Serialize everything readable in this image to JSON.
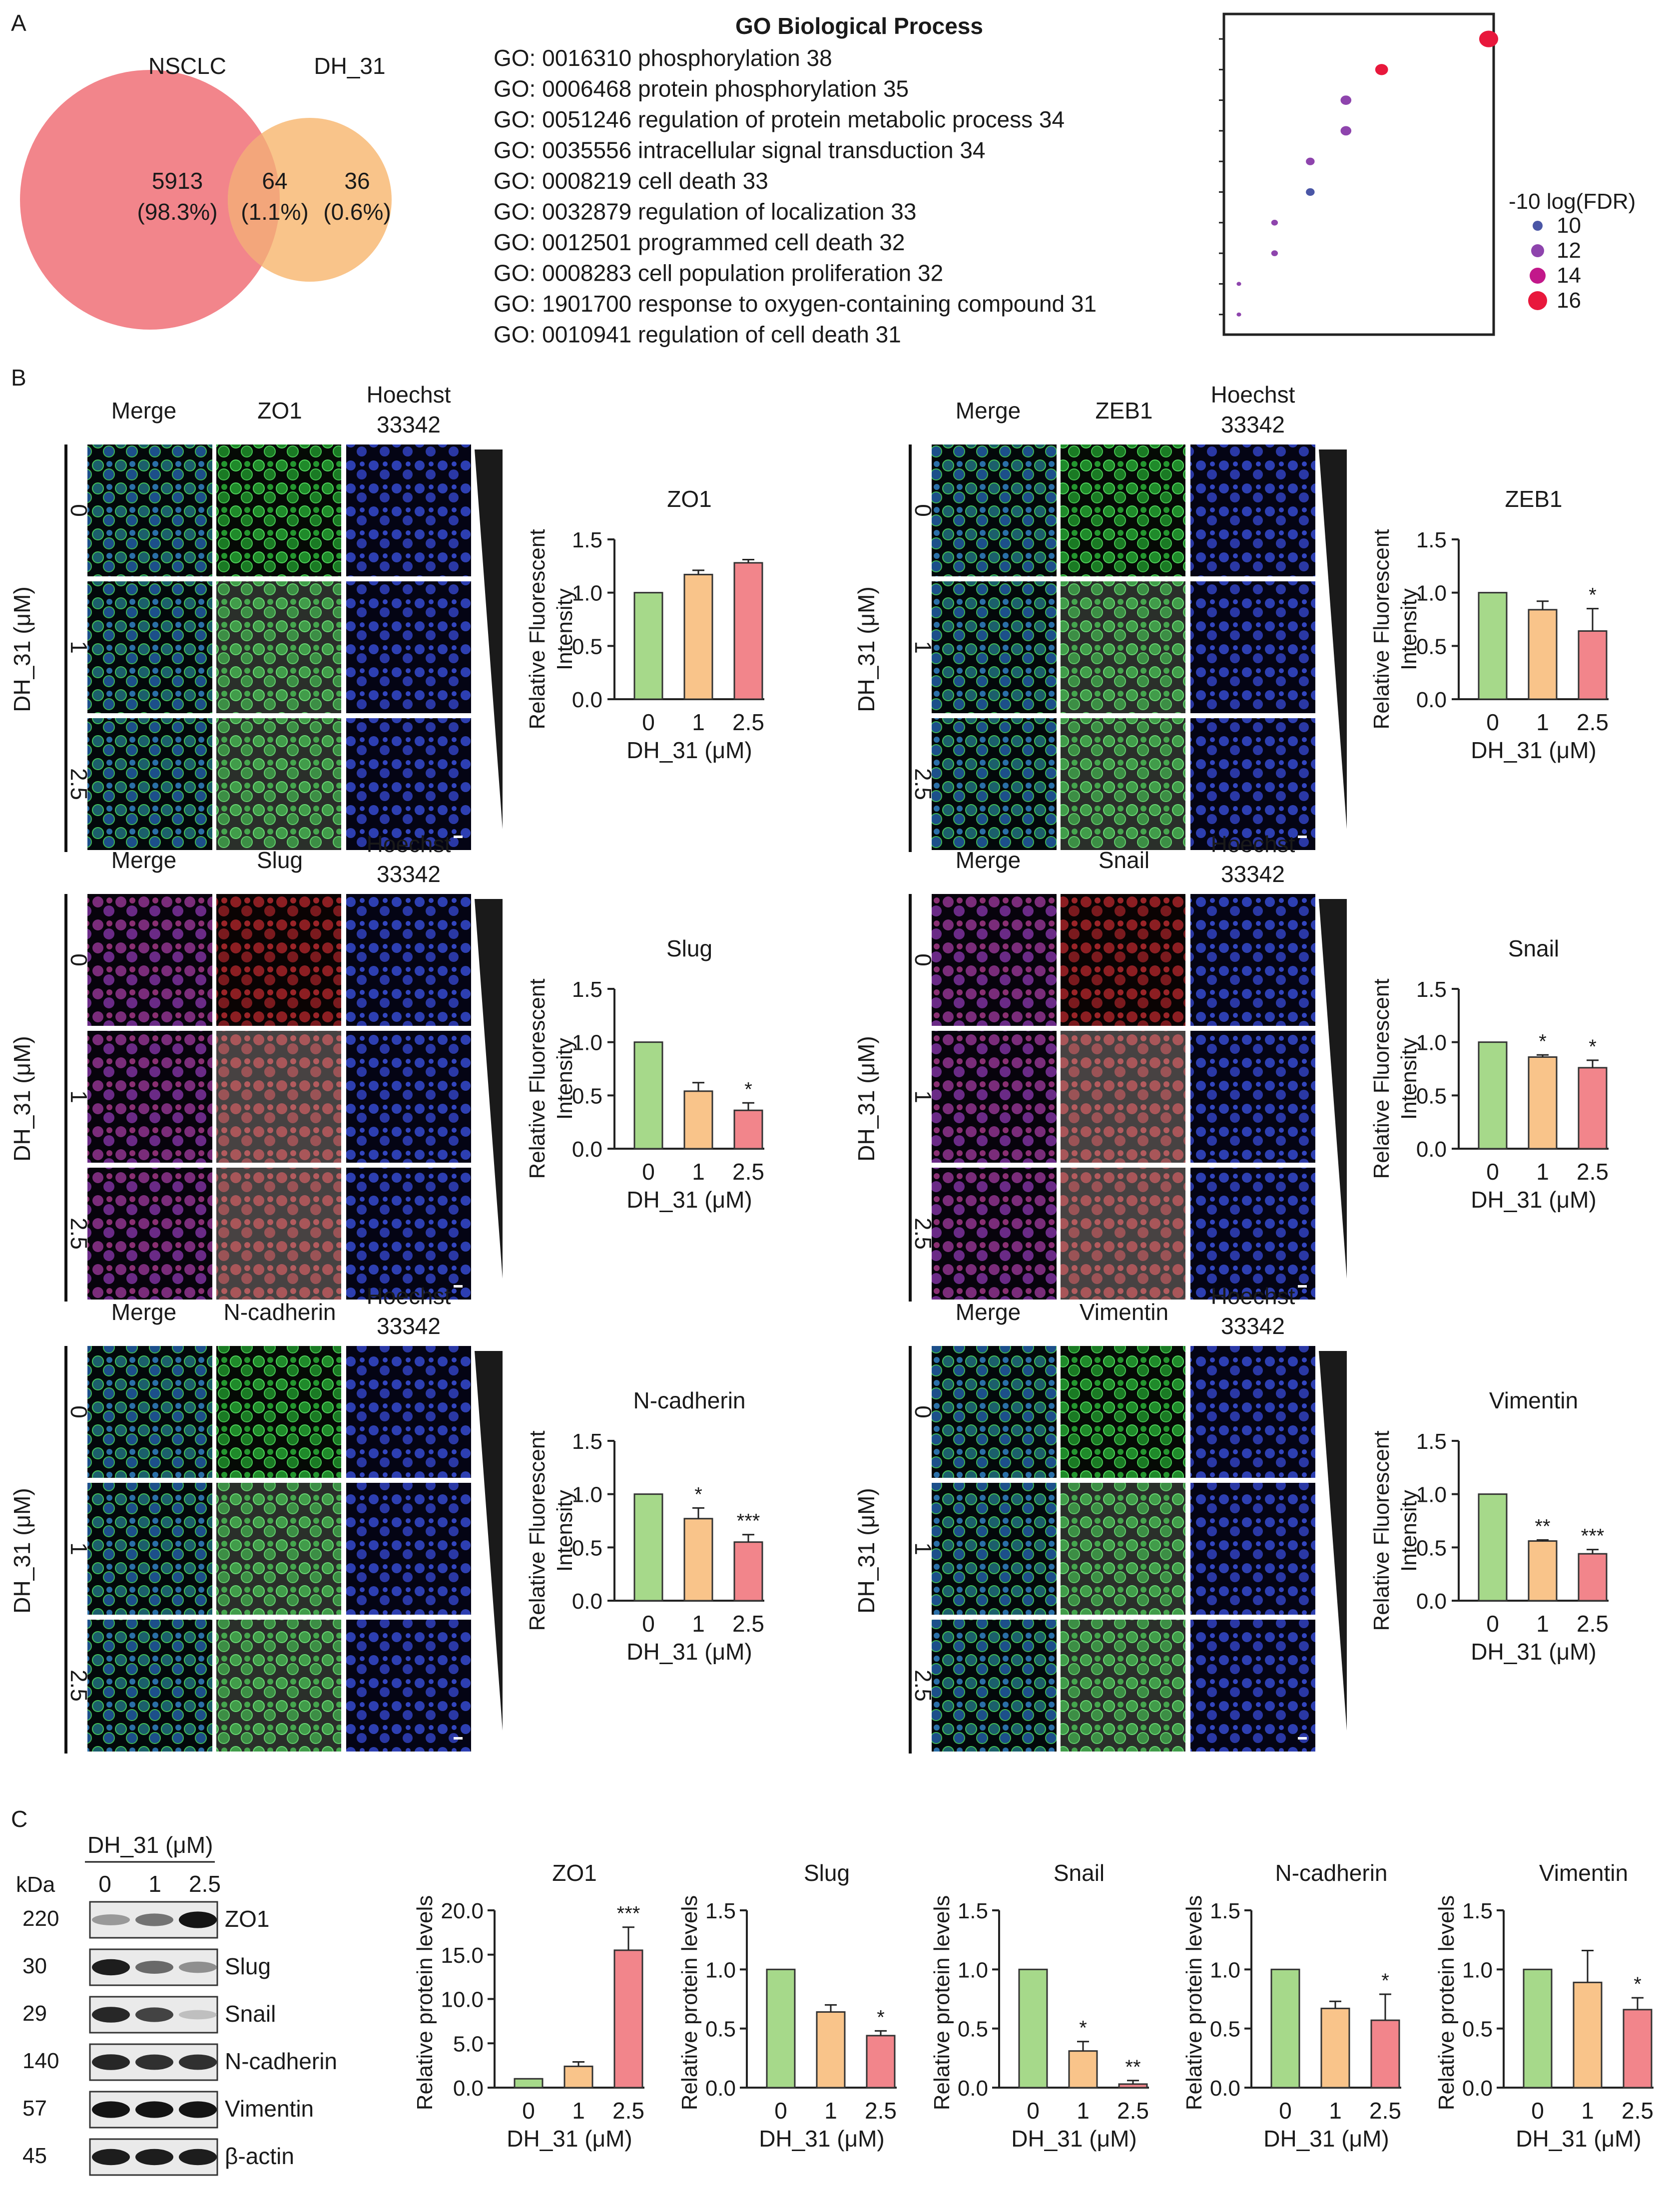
{
  "panel_labels": {
    "a": "A",
    "b": "B",
    "c": "C"
  },
  "venn": {
    "left_label": "NSCLC",
    "right_label": "DH_31",
    "left_count": "5913",
    "left_pct": "(98.3%)",
    "mid_count": "64",
    "mid_pct": "(1.1%)",
    "right_count": "36",
    "right_pct": "(0.6%)",
    "colors": {
      "left": "#f2858b",
      "right": "#f9c48a",
      "overlap": "#f3a67b"
    }
  },
  "go": {
    "title": "GO Biological Process",
    "terms": [
      {
        "text": "GO: 0016310  phosphorylation  38",
        "count": 38,
        "fdr": 16
      },
      {
        "text": "GO: 0006468  protein phosphorylation  35",
        "count": 35,
        "fdr": 16
      },
      {
        "text": "GO: 0051246 regulation of protein metabolic process  34",
        "count": 34,
        "fdr": 12
      },
      {
        "text": "GO: 0035556 intracellular signal transduction  34",
        "count": 34,
        "fdr": 12
      },
      {
        "text": "GO: 0008219 cell death  33",
        "count": 33,
        "fdr": 12
      },
      {
        "text": "GO: 0032879  regulation of localization  33",
        "count": 33,
        "fdr": 10
      },
      {
        "text": "GO: 0012501  programmed cell death  32",
        "count": 32,
        "fdr": 12
      },
      {
        "text": "GO: 0008283 cell population proliferation  32",
        "count": 32,
        "fdr": 12
      },
      {
        "text": "GO: 1901700  response to oxygen-containing compound 31",
        "count": 31,
        "fdr": 12
      },
      {
        "text": "GO: 0010941  regulation of cell death 31",
        "count": 31,
        "fdr": 12
      }
    ],
    "legend_title": "-10 log(FDR)",
    "legend": [
      {
        "label": "10",
        "color": "#4a56a6"
      },
      {
        "label": "12",
        "color": "#8e44ad"
      },
      {
        "label": "14",
        "color": "#c2188a"
      },
      {
        "label": "16",
        "color": "#e8183c"
      }
    ]
  },
  "if_panels": [
    {
      "marker": "ZO1",
      "channel": "green",
      "merge": "Merge",
      "stain": "Hoechst",
      "stain2": "33342",
      "doses": [
        "0",
        "1",
        "2.5"
      ],
      "ylabel": "Intensity",
      "ylabel_top": "Relative Fluorescent",
      "xlabel": "DH_31 (μM)",
      "ytitle": "DH_31 (μM)",
      "ticks": [
        "0.0",
        "0.5",
        "1.0",
        "1.5"
      ],
      "bars": [
        1.0,
        1.17,
        1.28
      ],
      "errs": [
        0,
        0.04,
        0.03
      ],
      "stars": [
        "",
        "",
        ""
      ]
    },
    {
      "marker": "ZEB1",
      "channel": "green",
      "merge": "Merge",
      "stain": "Hoechst",
      "stain2": "33342",
      "doses": [
        "0",
        "1",
        "2.5"
      ],
      "ylabel": "Intensity",
      "ylabel_top": "Relative Fluorescent",
      "xlabel": "DH_31 (μM)",
      "ytitle": "DH_31 (μM)",
      "ticks": [
        "0.0",
        "0.5",
        "1.0",
        "1.5"
      ],
      "bars": [
        1.0,
        0.84,
        0.64
      ],
      "errs": [
        0,
        0.08,
        0.21
      ],
      "stars": [
        "",
        "",
        "*"
      ]
    },
    {
      "marker": "Slug",
      "channel": "red",
      "merge": "Merge",
      "stain": "Hoechst",
      "stain2": "33342",
      "doses": [
        "0",
        "1",
        "2.5"
      ],
      "ylabel": "Intensity",
      "ylabel_top": "Relative Fluorescent",
      "xlabel": "DH_31 (μM)",
      "ytitle": "DH_31 (μM)",
      "ticks": [
        "0.0",
        "0.5",
        "1.0",
        "1.5"
      ],
      "bars": [
        1.0,
        0.54,
        0.36
      ],
      "errs": [
        0,
        0.08,
        0.07
      ],
      "stars": [
        "",
        "",
        "*"
      ]
    },
    {
      "marker": "Snail",
      "channel": "red",
      "merge": "Merge",
      "stain": "Hoechst",
      "stain2": "33342",
      "doses": [
        "0",
        "1",
        "2.5"
      ],
      "ylabel": "Intensity",
      "ylabel_top": "Relative Fluorescent",
      "xlabel": "DH_31 (μM)",
      "ytitle": "DH_31 (μM)",
      "ticks": [
        "0.0",
        "0.5",
        "1.0",
        "1.5"
      ],
      "bars": [
        1.0,
        0.86,
        0.76
      ],
      "errs": [
        0,
        0.02,
        0.07
      ],
      "stars": [
        "",
        "*",
        "*"
      ]
    },
    {
      "marker": "N-cadherin",
      "channel": "green",
      "merge": "Merge",
      "stain": "Hoechst",
      "stain2": "33342",
      "doses": [
        "0",
        "1",
        "2.5"
      ],
      "ylabel": "Intensity",
      "ylabel_top": "Relative Fluorescent",
      "xlabel": "DH_31 (μM)",
      "ytitle": "DH_31 (μM)",
      "ticks": [
        "0.0",
        "0.5",
        "1.0",
        "1.5"
      ],
      "bars": [
        1.0,
        0.77,
        0.55
      ],
      "errs": [
        0,
        0.1,
        0.07
      ],
      "stars": [
        "",
        "*",
        "***"
      ]
    },
    {
      "marker": "Vimentin",
      "channel": "green",
      "merge": "Merge",
      "stain": "Hoechst",
      "stain2": "33342",
      "doses": [
        "0",
        "1",
        "2.5"
      ],
      "ylabel": "Intensity",
      "ylabel_top": "Relative Fluorescent",
      "xlabel": "DH_31 (μM)",
      "ytitle": "DH_31 (μM)",
      "ticks": [
        "0.0",
        "0.5",
        "1.0",
        "1.5"
      ],
      "bars": [
        1.0,
        0.56,
        0.44
      ],
      "errs": [
        0,
        0.01,
        0.04
      ],
      "stars": [
        "",
        "**",
        "***"
      ]
    }
  ],
  "western": {
    "header": "DH_31 (μM)",
    "kda": "kDa",
    "doses": [
      "0",
      "1",
      "2.5"
    ],
    "rows": [
      {
        "kda": "220",
        "name": "ZO1",
        "intensity": [
          0.25,
          0.45,
          0.95
        ]
      },
      {
        "kda": "30",
        "name": "Slug",
        "intensity": [
          0.9,
          0.5,
          0.3
        ]
      },
      {
        "kda": "29",
        "name": "Snail",
        "intensity": [
          0.85,
          0.7,
          0.05
        ]
      },
      {
        "kda": "140",
        "name": "N-cadherin",
        "intensity": [
          0.85,
          0.8,
          0.8
        ]
      },
      {
        "kda": "57",
        "name": "Vimentin",
        "intensity": [
          0.95,
          0.95,
          0.95
        ]
      },
      {
        "kda": "45",
        "name": "β-actin",
        "intensity": [
          0.9,
          0.9,
          0.9
        ]
      }
    ]
  },
  "wb_charts": [
    {
      "title": "ZO1",
      "ylabel": "Relative protein levels",
      "xlabel": "DH_31 (μM)",
      "cats": [
        "0",
        "1",
        "2.5"
      ],
      "ticks": [
        "0.0",
        "5.0",
        "10.0",
        "15.0",
        "20.0"
      ],
      "ymax": 20,
      "bars": [
        1.0,
        2.4,
        15.5
      ],
      "errs": [
        0,
        0.5,
        2.6
      ],
      "stars": [
        "",
        "",
        "***"
      ]
    },
    {
      "title": "Slug",
      "ylabel": "Relative protein levels",
      "xlabel": "DH_31 (μM)",
      "cats": [
        "0",
        "1",
        "2.5"
      ],
      "ticks": [
        "0.0",
        "0.5",
        "1.0",
        "1.5"
      ],
      "ymax": 1.5,
      "bars": [
        1.0,
        0.64,
        0.44
      ],
      "errs": [
        0,
        0.06,
        0.04
      ],
      "stars": [
        "",
        "",
        "*"
      ]
    },
    {
      "title": "Snail",
      "ylabel": "Relative protein levels",
      "xlabel": "DH_31 (μM)",
      "cats": [
        "0",
        "1",
        "2.5"
      ],
      "ticks": [
        "0.0",
        "0.5",
        "1.0",
        "1.5"
      ],
      "ymax": 1.5,
      "bars": [
        1.0,
        0.31,
        0.03
      ],
      "errs": [
        0,
        0.08,
        0.03
      ],
      "stars": [
        "",
        "*",
        "**"
      ]
    },
    {
      "title": "N-cadherin",
      "ylabel": "Relative protein levels",
      "xlabel": "DH_31 (μM)",
      "cats": [
        "0",
        "1",
        "2.5"
      ],
      "ticks": [
        "0.0",
        "0.5",
        "1.0",
        "1.5"
      ],
      "ymax": 1.5,
      "bars": [
        1.0,
        0.67,
        0.57
      ],
      "errs": [
        0,
        0.06,
        0.22
      ],
      "stars": [
        "",
        "",
        "*"
      ]
    },
    {
      "title": "Vimentin",
      "ylabel": "Relative protein levels",
      "xlabel": "DH_31 (μM)",
      "cats": [
        "0",
        "1",
        "2.5"
      ],
      "ticks": [
        "0.0",
        "0.5",
        "1.0",
        "1.5"
      ],
      "ymax": 1.5,
      "bars": [
        1.0,
        0.89,
        0.66
      ],
      "errs": [
        0,
        0.27,
        0.1
      ],
      "stars": [
        "",
        "",
        "*"
      ]
    }
  ],
  "bar_colors": {
    "c0": "#a6d98a",
    "c1": "#f9c48a",
    "c2": "#f2858b",
    "edge": "#333333"
  },
  "chart_data": [
    {
      "type": "bar",
      "title": "ZO1",
      "categories": [
        "0",
        "1",
        "2.5"
      ],
      "values": [
        1.0,
        1.17,
        1.28
      ],
      "xlabel": "DH_31 (μM)",
      "ylabel": "Relative Fluorescent Intensity",
      "ylim": [
        0,
        1.5
      ]
    },
    {
      "type": "bar",
      "title": "ZEB1",
      "categories": [
        "0",
        "1",
        "2.5"
      ],
      "values": [
        1.0,
        0.84,
        0.64
      ],
      "xlabel": "DH_31 (μM)",
      "ylabel": "Relative Fluorescent Intensity",
      "ylim": [
        0,
        1.5
      ]
    },
    {
      "type": "bar",
      "title": "Slug",
      "categories": [
        "0",
        "1",
        "2.5"
      ],
      "values": [
        1.0,
        0.54,
        0.36
      ],
      "xlabel": "DH_31 (μM)",
      "ylabel": "Relative Fluorescent Intensity",
      "ylim": [
        0,
        1.5
      ]
    },
    {
      "type": "bar",
      "title": "Snail",
      "categories": [
        "0",
        "1",
        "2.5"
      ],
      "values": [
        1.0,
        0.86,
        0.76
      ],
      "xlabel": "DH_31 (μM)",
      "ylabel": "Relative Fluorescent Intensity",
      "ylim": [
        0,
        1.5
      ]
    },
    {
      "type": "bar",
      "title": "N-cadherin",
      "categories": [
        "0",
        "1",
        "2.5"
      ],
      "values": [
        1.0,
        0.77,
        0.55
      ],
      "xlabel": "DH_31 (μM)",
      "ylabel": "Relative Fluorescent Intensity",
      "ylim": [
        0,
        1.5
      ]
    },
    {
      "type": "bar",
      "title": "Vimentin",
      "categories": [
        "0",
        "1",
        "2.5"
      ],
      "values": [
        1.0,
        0.56,
        0.44
      ],
      "xlabel": "DH_31 (μM)",
      "ylabel": "Relative Fluorescent Intensity",
      "ylim": [
        0,
        1.5
      ]
    },
    {
      "type": "bar",
      "title": "ZO1",
      "categories": [
        "0",
        "1",
        "2.5"
      ],
      "values": [
        1.0,
        2.4,
        15.5
      ],
      "xlabel": "DH_31 (μM)",
      "ylabel": "Relative protein levels",
      "ylim": [
        0,
        20
      ]
    },
    {
      "type": "bar",
      "title": "Slug",
      "categories": [
        "0",
        "1",
        "2.5"
      ],
      "values": [
        1.0,
        0.64,
        0.44
      ],
      "xlabel": "DH_31 (μM)",
      "ylabel": "Relative protein levels",
      "ylim": [
        0,
        1.5
      ]
    },
    {
      "type": "bar",
      "title": "Snail",
      "categories": [
        "0",
        "1",
        "2.5"
      ],
      "values": [
        1.0,
        0.31,
        0.03
      ],
      "xlabel": "DH_31 (μM)",
      "ylabel": "Relative protein levels",
      "ylim": [
        0,
        1.5
      ]
    },
    {
      "type": "bar",
      "title": "N-cadherin",
      "categories": [
        "0",
        "1",
        "2.5"
      ],
      "values": [
        1.0,
        0.67,
        0.57
      ],
      "xlabel": "DH_31 (μM)",
      "ylabel": "Relative protein levels",
      "ylim": [
        0,
        1.5
      ]
    },
    {
      "type": "bar",
      "title": "Vimentin",
      "categories": [
        "0",
        "1",
        "2.5"
      ],
      "values": [
        1.0,
        0.89,
        0.66
      ],
      "xlabel": "DH_31 (μM)",
      "ylabel": "Relative protein levels",
      "ylim": [
        0,
        1.5
      ]
    }
  ]
}
